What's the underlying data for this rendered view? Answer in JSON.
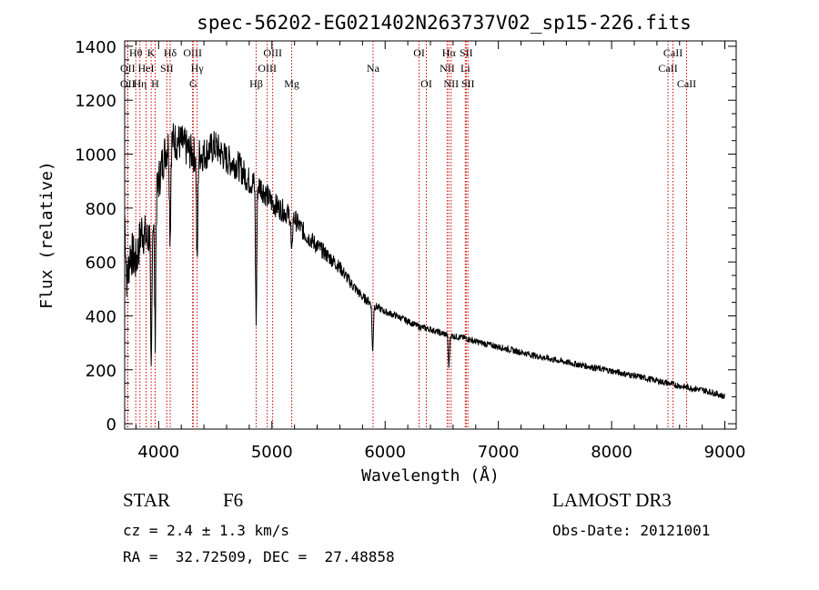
{
  "chart_data": {
    "type": "line",
    "title": "spec-56202-EG021402N263737V02_sp15-226.fits",
    "xlabel": "Wavelength (Å)",
    "ylabel": "Flux (relative)",
    "xlim": [
      3700,
      9100
    ],
    "ylim": [
      -20,
      1420
    ],
    "xticks": [
      4000,
      5000,
      6000,
      7000,
      8000,
      9000
    ],
    "yticks": [
      0,
      200,
      400,
      600,
      800,
      1000,
      1200,
      1400
    ],
    "series": [
      {
        "name": "spectrum",
        "anchors": [
          [
            3700,
            780
          ],
          [
            3720,
            520
          ],
          [
            3750,
            640
          ],
          [
            3800,
            600
          ],
          [
            3850,
            720
          ],
          [
            3900,
            680
          ],
          [
            3950,
            760
          ],
          [
            4000,
            900
          ],
          [
            4050,
            1000
          ],
          [
            4100,
            1050
          ],
          [
            4150,
            1050
          ],
          [
            4200,
            1040
          ],
          [
            4250,
            1020
          ],
          [
            4300,
            1000
          ],
          [
            4400,
            1000
          ],
          [
            4500,
            1030
          ],
          [
            4600,
            980
          ],
          [
            4700,
            960
          ],
          [
            4800,
            900
          ],
          [
            4900,
            880
          ],
          [
            5000,
            820
          ],
          [
            5100,
            790
          ],
          [
            5200,
            760
          ],
          [
            5300,
            700
          ],
          [
            5400,
            660
          ],
          [
            5500,
            620
          ],
          [
            5600,
            580
          ],
          [
            5700,
            520
          ],
          [
            5800,
            470
          ],
          [
            5900,
            440
          ],
          [
            6000,
            415
          ],
          [
            6100,
            400
          ],
          [
            6200,
            380
          ],
          [
            6300,
            360
          ],
          [
            6400,
            350
          ],
          [
            6500,
            335
          ],
          [
            6600,
            325
          ],
          [
            6700,
            318
          ],
          [
            6800,
            305
          ],
          [
            6900,
            295
          ],
          [
            7000,
            285
          ],
          [
            7200,
            265
          ],
          [
            7400,
            245
          ],
          [
            7600,
            228
          ],
          [
            7800,
            212
          ],
          [
            8000,
            195
          ],
          [
            8200,
            178
          ],
          [
            8400,
            160
          ],
          [
            8600,
            140
          ],
          [
            8800,
            125
          ],
          [
            8900,
            115
          ],
          [
            9000,
            100
          ]
        ],
        "absorption": [
          [
            3934,
            560
          ],
          [
            3969,
            480
          ],
          [
            4101,
            350
          ],
          [
            4340,
            420
          ],
          [
            4861,
            500
          ],
          [
            5175,
            150
          ],
          [
            5890,
            180
          ],
          [
            6563,
            120
          ]
        ],
        "noise": {
          "low_wavelength": 90,
          "high_wavelength": 12,
          "seed": 7
        }
      }
    ],
    "lines": [
      {
        "label": "OII",
        "wavelength": 3727,
        "row": 1
      },
      {
        "label": "OII",
        "wavelength": 3727,
        "row": 2
      },
      {
        "label": "Hθ",
        "wavelength": 3798,
        "row": 0
      },
      {
        "label": "Hη",
        "wavelength": 3835,
        "row": 2
      },
      {
        "label": "HeI",
        "wavelength": 3889,
        "row": 1
      },
      {
        "label": "K",
        "wavelength": 3934,
        "row": 0
      },
      {
        "label": "H",
        "wavelength": 3969,
        "row": 2
      },
      {
        "label": "SII",
        "wavelength": 4072,
        "row": 1
      },
      {
        "label": "Hδ",
        "wavelength": 4102,
        "row": 0
      },
      {
        "label": "OIII",
        "wavelength": 4300,
        "row": 0
      },
      {
        "label": "Hγ",
        "wavelength": 4340,
        "row": 1
      },
      {
        "label": "G",
        "wavelength": 4305,
        "row": 2
      },
      {
        "label": "Hβ",
        "wavelength": 4861,
        "row": 2
      },
      {
        "label": "OIII",
        "wavelength": 4959,
        "row": 1
      },
      {
        "label": "OIII",
        "wavelength": 5007,
        "row": 0
      },
      {
        "label": "Mg",
        "wavelength": 5175,
        "row": 2
      },
      {
        "label": "Na",
        "wavelength": 5893,
        "row": 1
      },
      {
        "label": "OI",
        "wavelength": 6300,
        "row": 0
      },
      {
        "label": "OI",
        "wavelength": 6364,
        "row": 2
      },
      {
        "label": "NII",
        "wavelength": 6548,
        "row": 1
      },
      {
        "label": "Hα",
        "wavelength": 6563,
        "row": 0
      },
      {
        "label": "NII",
        "wavelength": 6583,
        "row": 2
      },
      {
        "label": "SII",
        "wavelength": 6716,
        "row": 0
      },
      {
        "label": "Li",
        "wavelength": 6708,
        "row": 1
      },
      {
        "label": "SII",
        "wavelength": 6731,
        "row": 2
      },
      {
        "label": "CaII",
        "wavelength": 8498,
        "row": 1
      },
      {
        "label": "CaII",
        "wavelength": 8542,
        "row": 0
      },
      {
        "label": "CaII",
        "wavelength": 8662,
        "row": 2
      }
    ]
  },
  "footer": {
    "class_label": "STAR",
    "subclass": "F6",
    "survey": "LAMOST DR3",
    "cz": "cz = 2.4 ± 1.3 km/s",
    "obs_date": "Obs-Date: 20121001",
    "coords": "RA =  32.72509, DEC =  27.48858"
  },
  "colors": {
    "line_color": "#000000",
    "marker_color": "#cc0000",
    "background": "#ffffff"
  }
}
